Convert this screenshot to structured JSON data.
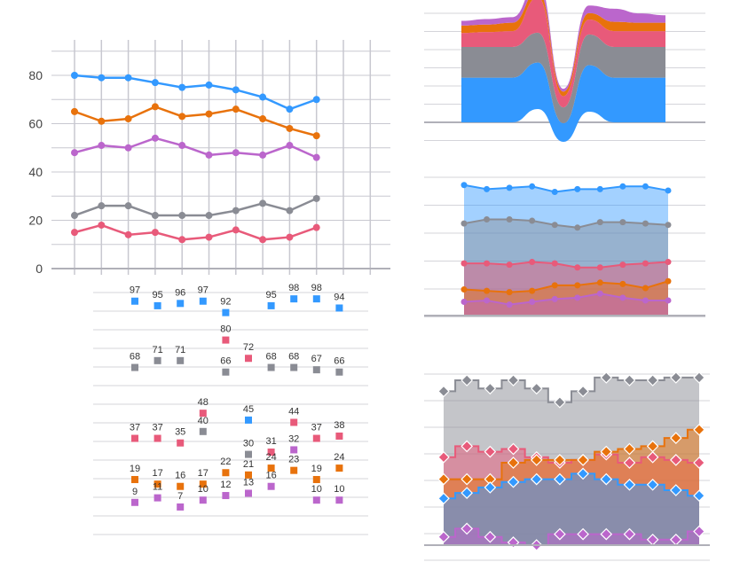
{
  "colors": {
    "blue": "#3399ff",
    "orange": "#e8720c",
    "pink": "#e85a7a",
    "gray": "#8a8c94",
    "purple": "#bb66cc",
    "grid": "#c8c8d0",
    "axis": "#b0b0b8"
  },
  "chart_data": [
    {
      "id": "line_chart",
      "type": "line",
      "title": "",
      "xlabel": "",
      "ylabel": "",
      "x": [
        0,
        1,
        2,
        3,
        4,
        5,
        6,
        7,
        8,
        9
      ],
      "ylim": [
        0,
        90
      ],
      "y_ticks": [
        "0",
        "20",
        "40",
        "60",
        "80"
      ],
      "grid": true,
      "series": [
        {
          "color": "blue",
          "values": [
            80,
            79,
            79,
            77,
            75,
            76,
            74,
            71,
            66,
            70
          ]
        },
        {
          "color": "orange",
          "values": [
            65,
            61,
            62,
            67,
            63,
            64,
            66,
            62,
            58,
            55
          ]
        },
        {
          "color": "purple",
          "values": [
            48,
            51,
            50,
            54,
            51,
            47,
            48,
            47,
            51,
            46
          ]
        },
        {
          "color": "gray",
          "values": [
            22,
            26,
            26,
            22,
            22,
            22,
            24,
            27,
            24,
            29
          ]
        },
        {
          "color": "pink",
          "values": [
            15,
            18,
            14,
            15,
            12,
            13,
            16,
            12,
            13,
            17
          ]
        }
      ]
    },
    {
      "id": "labeled_scatter",
      "type": "scatter",
      "x": [
        0,
        1,
        2,
        3,
        4,
        5,
        6,
        7,
        8,
        9
      ],
      "grid": true,
      "series": [
        {
          "color": "blue",
          "values": [
            97,
            95,
            96,
            97,
            92,
            null,
            95,
            98,
            98,
            94
          ]
        },
        {
          "color": "pink",
          "values": [
            37,
            37,
            35,
            48,
            80,
            72,
            31,
            44,
            37,
            38
          ]
        },
        {
          "color": "gray",
          "values": [
            68,
            71,
            71,
            40,
            66,
            30,
            68,
            68,
            67,
            66
          ]
        },
        {
          "color": "orange",
          "values": [
            19,
            17,
            16,
            17,
            22,
            21,
            24,
            23,
            19,
            24
          ]
        },
        {
          "color": "purple",
          "values": [
            9,
            11,
            7,
            10,
            12,
            13,
            16,
            32,
            10,
            10
          ]
        },
        {
          "color": "blue",
          "values": [
            null,
            null,
            null,
            null,
            null,
            45,
            null,
            null,
            null,
            null
          ]
        }
      ]
    },
    {
      "id": "streamgraph",
      "type": "area",
      "stacking": "wiggle",
      "grid": true,
      "x": [
        0,
        1,
        2,
        3,
        4,
        5,
        6,
        7,
        8
      ],
      "series": [
        {
          "color": "blue",
          "values": [
            48,
            48,
            48,
            50,
            20,
            50,
            48,
            48,
            48
          ]
        },
        {
          "color": "gray",
          "values": [
            33,
            33,
            33,
            32,
            17,
            33,
            33,
            33,
            33
          ]
        },
        {
          "color": "pink",
          "values": [
            15,
            16,
            17,
            38,
            12,
            16,
            17,
            17,
            17
          ]
        },
        {
          "color": "orange",
          "values": [
            8,
            8,
            9,
            7,
            5,
            7,
            10,
            9,
            9
          ]
        },
        {
          "color": "purple",
          "values": [
            5,
            6,
            6,
            10,
            3,
            8,
            14,
            10,
            8
          ]
        }
      ]
    },
    {
      "id": "overlapping_area",
      "type": "area",
      "grid": true,
      "x": [
        0,
        1,
        2,
        3,
        4,
        5,
        6,
        7,
        8,
        9
      ],
      "ylim": [
        0,
        100
      ],
      "series": [
        {
          "color": "blue",
          "values": [
            95,
            92,
            93,
            94,
            90,
            92,
            92,
            94,
            94,
            91
          ]
        },
        {
          "color": "gray",
          "values": [
            67,
            70,
            70,
            69,
            66,
            64,
            68,
            68,
            67,
            66
          ]
        },
        {
          "color": "pink",
          "values": [
            38,
            38,
            37,
            39,
            38,
            35,
            35,
            37,
            38,
            39
          ]
        },
        {
          "color": "orange",
          "values": [
            19,
            18,
            17,
            18,
            22,
            22,
            24,
            23,
            20,
            25
          ]
        },
        {
          "color": "purple",
          "values": [
            10,
            11,
            8,
            10,
            12,
            13,
            16,
            13,
            11,
            11
          ]
        }
      ]
    },
    {
      "id": "step_area",
      "type": "area",
      "interpolation": "step",
      "grid": true,
      "x": [
        0,
        1,
        2,
        3,
        4,
        5,
        6,
        7,
        8,
        9,
        10,
        11
      ],
      "ylim": [
        0,
        70
      ],
      "series": [
        {
          "color": "gray",
          "values": [
            56,
            60,
            57,
            60,
            57,
            52,
            56,
            61,
            60,
            60,
            61,
            61
          ]
        },
        {
          "color": "pink",
          "values": [
            32,
            36,
            34,
            35,
            32,
            30,
            31,
            33,
            30,
            32,
            31,
            30
          ]
        },
        {
          "color": "orange",
          "values": [
            24,
            24,
            24,
            30,
            31,
            31,
            31,
            34,
            35,
            36,
            39,
            42
          ]
        },
        {
          "color": "blue",
          "values": [
            17,
            19,
            21,
            23,
            24,
            24,
            26,
            24,
            22,
            22,
            20,
            18
          ]
        },
        {
          "color": "purple",
          "values": [
            3,
            6,
            3,
            1,
            0,
            4,
            4,
            4,
            4,
            2,
            2,
            5
          ]
        }
      ]
    }
  ]
}
